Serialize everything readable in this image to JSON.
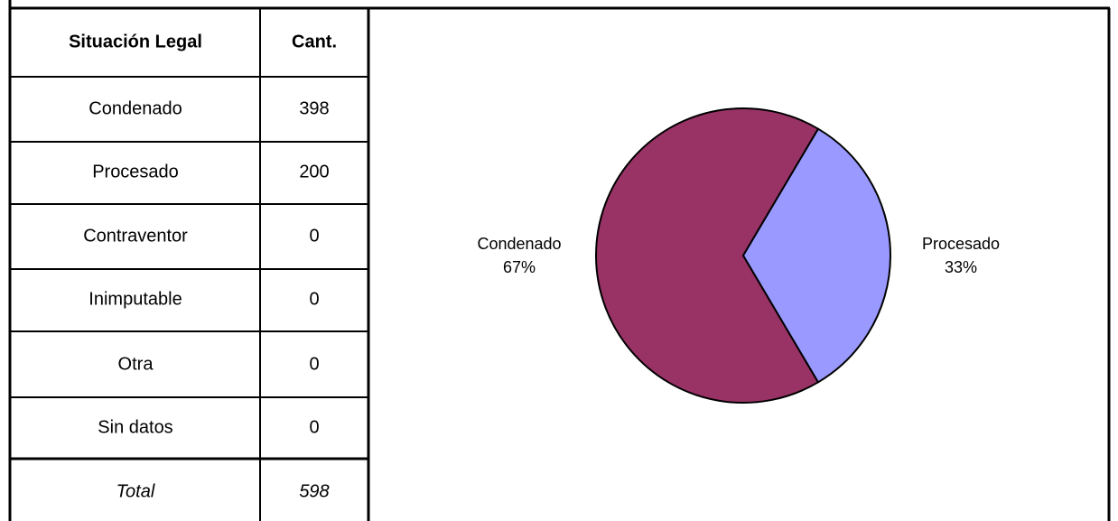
{
  "table": {
    "headers": [
      "Situación Legal",
      "Cant."
    ],
    "rows": [
      [
        "Condenado",
        398
      ],
      [
        "Procesado",
        200
      ],
      [
        "Contraventor",
        0
      ],
      [
        "Inimputable",
        0
      ],
      [
        "Otra",
        0
      ],
      [
        "Sin datos",
        0
      ]
    ],
    "total": [
      "Total",
      598
    ]
  },
  "chart_data": {
    "type": "pie",
    "categories": [
      "Condenado",
      "Procesado"
    ],
    "values": [
      67,
      33
    ],
    "value_labels": [
      "67%",
      "33%"
    ],
    "colors": [
      "#993366",
      "#9999ff"
    ]
  }
}
